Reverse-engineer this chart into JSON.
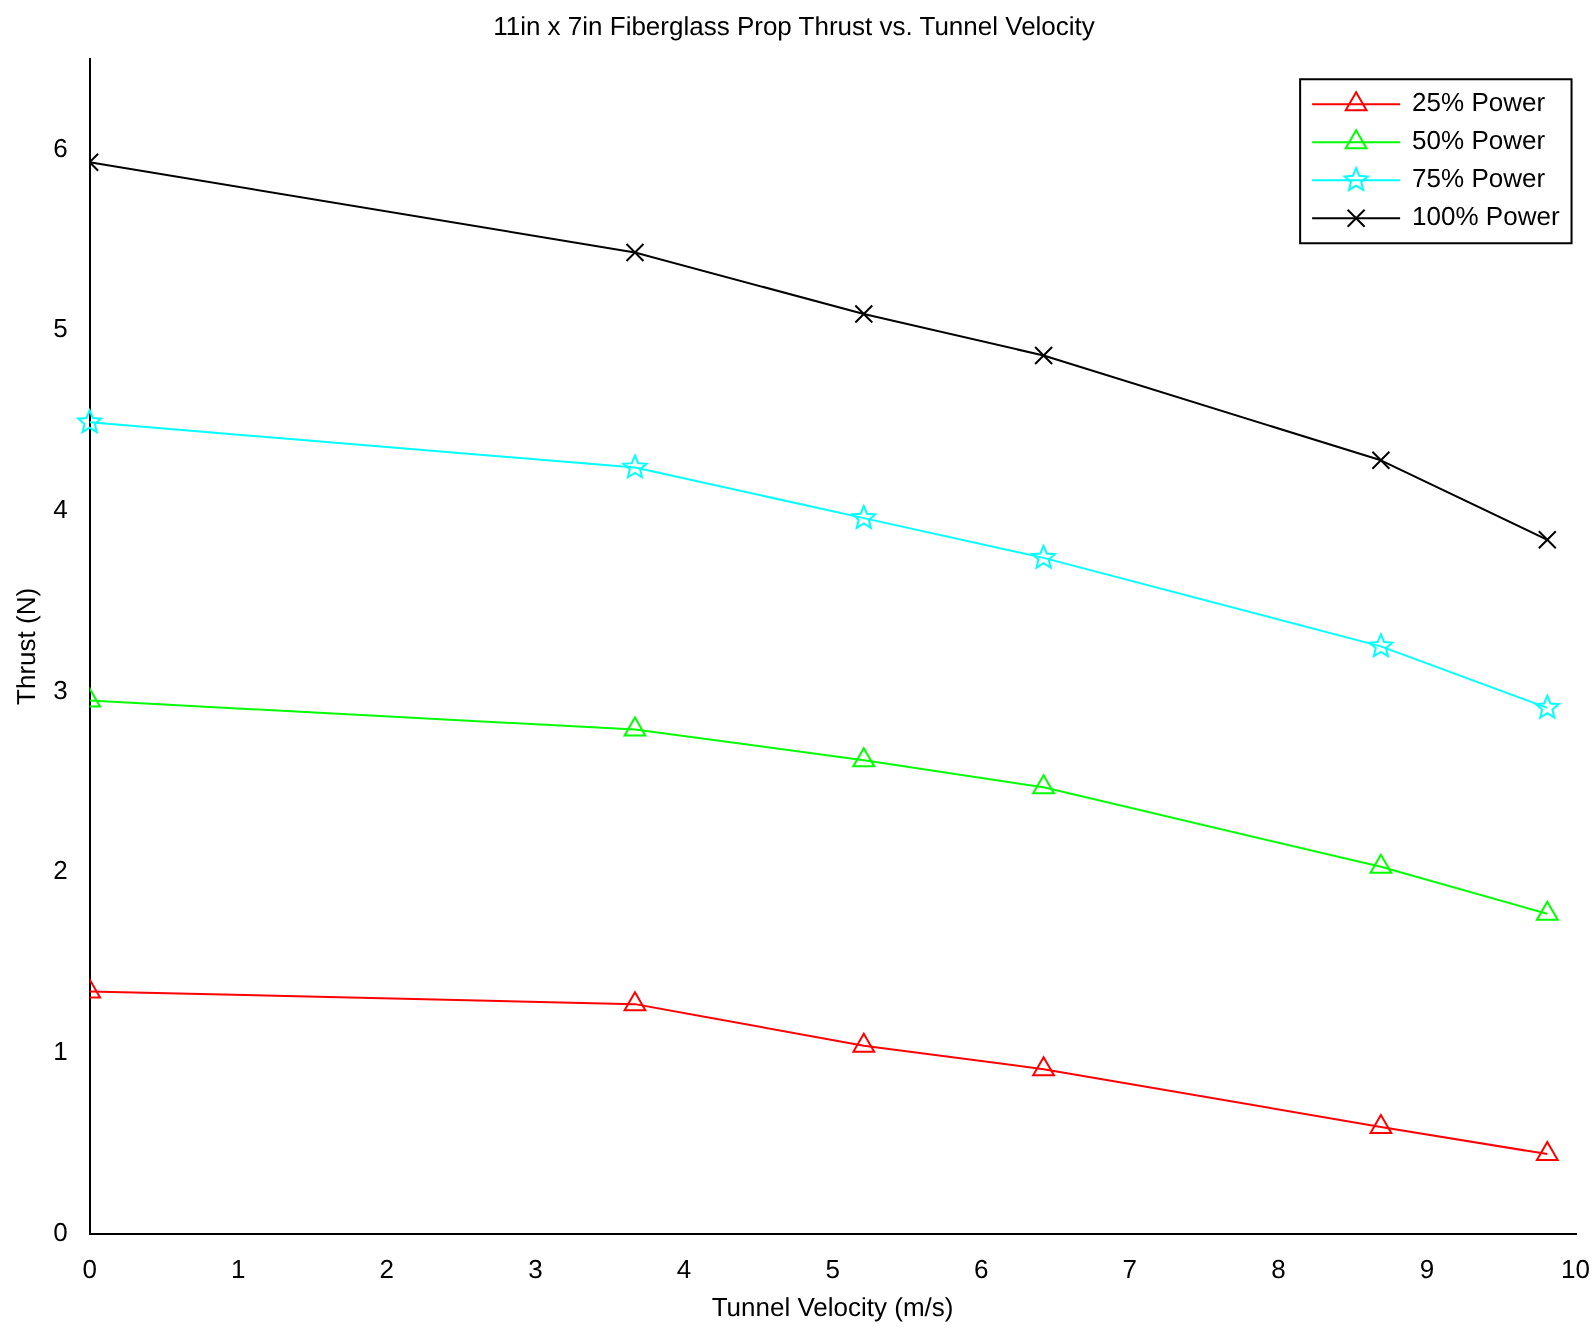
{
  "chart_data": {
    "type": "line",
    "title": "11in x 7in Fiberglass Prop Thrust vs. Tunnel Velocity",
    "xlabel": "Tunnel Velocity (m/s)",
    "ylabel": "Thrust (N)",
    "x": [
      0,
      3.67,
      5.21,
      6.42,
      8.69,
      9.81
    ],
    "series": [
      {
        "name": "25% Power",
        "color": "#ff0000",
        "marker": "triangle",
        "values": [
          1.34,
          1.27,
          1.04,
          0.91,
          0.59,
          0.44
        ]
      },
      {
        "name": "50% Power",
        "color": "#00ff00",
        "marker": "triangle",
        "values": [
          2.95,
          2.79,
          2.62,
          2.47,
          2.03,
          1.77
        ]
      },
      {
        "name": "75% Power",
        "color": "#00ffff",
        "marker": "star",
        "values": [
          4.49,
          4.24,
          3.96,
          3.74,
          3.25,
          2.91
        ]
      },
      {
        "name": "100% Power",
        "color": "#000000",
        "marker": "cross",
        "values": [
          5.93,
          5.43,
          5.09,
          4.86,
          4.28,
          3.84
        ]
      }
    ],
    "xlim": [
      0,
      10
    ],
    "xticks": [
      0,
      1,
      2,
      3,
      4,
      5,
      6,
      7,
      8,
      9,
      10
    ],
    "ylim": [
      0,
      6.5
    ],
    "yticks": [
      0,
      1,
      2,
      3,
      4,
      5,
      6
    ],
    "grid": false,
    "legend": "top right",
    "line_style": "solid"
  }
}
